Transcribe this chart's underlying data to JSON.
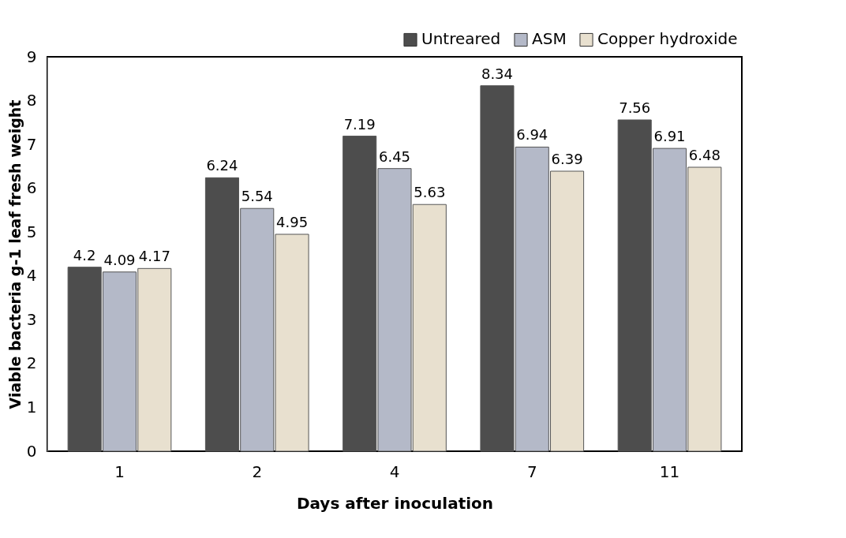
{
  "chart_data": {
    "type": "bar",
    "xlabel": "Days after inoculation",
    "ylabel": "Viable bacteria g-1 leaf fresh weight",
    "categories": [
      "1",
      "2",
      "4",
      "7",
      "11"
    ],
    "series": [
      {
        "name": "Untreared",
        "color": "#4d4d4d",
        "values": [
          4.2,
          6.24,
          7.19,
          8.34,
          7.56
        ]
      },
      {
        "name": "ASM",
        "color": "#b4b9c8",
        "values": [
          4.09,
          5.54,
          6.45,
          6.94,
          6.91
        ]
      },
      {
        "name": "Copper hydroxide",
        "color": "#e8e0cf",
        "values": [
          4.17,
          4.95,
          5.63,
          6.39,
          6.48
        ]
      }
    ],
    "ylim": [
      0,
      9
    ],
    "yticks": [
      0,
      1,
      2,
      3,
      4,
      5,
      6,
      7,
      8,
      9
    ],
    "data_labels": true,
    "legend": "top right"
  }
}
